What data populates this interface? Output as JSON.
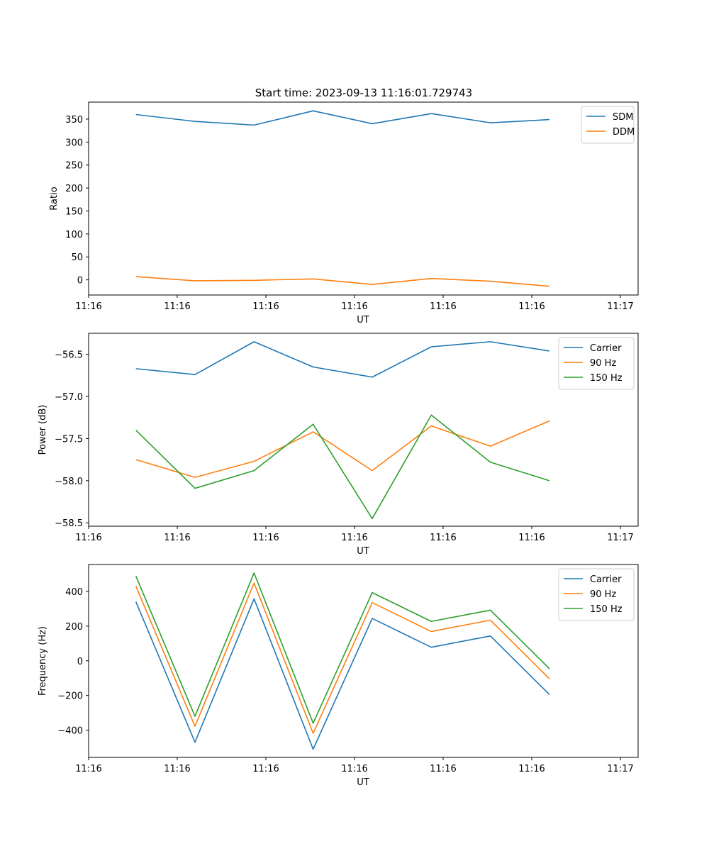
{
  "title": "Start time: 2023-09-13 11:16:01.729743",
  "colors": {
    "blue": "#1f77b4",
    "orange": "#ff7f0e",
    "green": "#2ca02c"
  },
  "chart_data": [
    {
      "type": "line",
      "title": "Start time: 2023-09-13 11:16:01.729743",
      "xlabel": "UT",
      "ylabel": "Ratio",
      "x": [
        1,
        2,
        3,
        4,
        5,
        6,
        7,
        8
      ],
      "xlim": [
        0.2,
        9.5
      ],
      "xticks": {
        "values": [
          0.2,
          1.7,
          3.2,
          4.7,
          6.2,
          7.7,
          9.2
        ],
        "labels": [
          "11:16",
          "11:16",
          "11:16",
          "11:16",
          "11:16",
          "11:16",
          "11:17"
        ]
      },
      "ylim": [
        -33,
        387
      ],
      "yticks": {
        "values": [
          0,
          50,
          100,
          150,
          200,
          250,
          300,
          350
        ],
        "labels": [
          "0",
          "50",
          "100",
          "150",
          "200",
          "250",
          "300",
          "350"
        ]
      },
      "legend": "top-right",
      "series": [
        {
          "name": "SDM",
          "color": "#1f77b4",
          "values": [
            360,
            345,
            337,
            368,
            340,
            362,
            342,
            349
          ]
        },
        {
          "name": "DDM",
          "color": "#ff7f0e",
          "values": [
            7,
            -2,
            -1,
            2,
            -10,
            3,
            -3,
            -14
          ]
        }
      ]
    },
    {
      "type": "line",
      "title": "",
      "xlabel": "UT",
      "ylabel": "Power (dB)",
      "x": [
        1,
        2,
        3,
        4,
        5,
        6,
        7,
        8
      ],
      "xlim": [
        0.2,
        9.5
      ],
      "xticks": {
        "values": [
          0.2,
          1.7,
          3.2,
          4.7,
          6.2,
          7.7,
          9.2
        ],
        "labels": [
          "11:16",
          "11:16",
          "11:16",
          "11:16",
          "11:16",
          "11:16",
          "11:17"
        ]
      },
      "ylim": [
        -58.54,
        -56.25
      ],
      "yticks": {
        "values": [
          -58.5,
          -58.0,
          -57.5,
          -57.0,
          -56.5
        ],
        "labels": [
          "−58.5",
          "−58.0",
          "−57.5",
          "−57.0",
          "−56.5"
        ]
      },
      "legend": "top-right",
      "series": [
        {
          "name": "Carrier",
          "color": "#1f77b4",
          "values": [
            -56.67,
            -56.74,
            -56.35,
            -56.65,
            -56.77,
            -56.41,
            -56.35,
            -56.46
          ]
        },
        {
          "name": "90 Hz",
          "color": "#ff7f0e",
          "values": [
            -57.75,
            -57.96,
            -57.77,
            -57.42,
            -57.88,
            -57.35,
            -57.59,
            -57.29
          ]
        },
        {
          "name": "150 Hz",
          "color": "#2ca02c",
          "values": [
            -57.4,
            -58.09,
            -57.88,
            -57.33,
            -58.45,
            -57.22,
            -57.78,
            -58.0
          ]
        }
      ]
    },
    {
      "type": "line",
      "title": "",
      "xlabel": "UT",
      "ylabel": "Frequency (Hz)",
      "x": [
        1,
        2,
        3,
        4,
        5,
        6,
        7,
        8
      ],
      "xlim": [
        0.2,
        9.5
      ],
      "xticks": {
        "values": [
          0.2,
          1.7,
          3.2,
          4.7,
          6.2,
          7.7,
          9.2
        ],
        "labels": [
          "11:16",
          "11:16",
          "11:16",
          "11:16",
          "11:16",
          "11:16",
          "11:17"
        ]
      },
      "ylim": [
        -557,
        555
      ],
      "yticks": {
        "values": [
          -400,
          -200,
          0,
          200,
          400
        ],
        "labels": [
          "−400",
          "−200",
          "0",
          "200",
          "400"
        ]
      },
      "legend": "top-right",
      "series": [
        {
          "name": "Carrier",
          "color": "#1f77b4",
          "values": [
            340,
            -470,
            357,
            -510,
            244,
            78,
            143,
            -195
          ]
        },
        {
          "name": "90 Hz",
          "color": "#ff7f0e",
          "values": [
            430,
            -378,
            448,
            -418,
            335,
            169,
            234,
            -104
          ]
        },
        {
          "name": "150 Hz",
          "color": "#2ca02c",
          "values": [
            488,
            -320,
            506,
            -360,
            393,
            227,
            292,
            -46
          ]
        }
      ]
    }
  ]
}
